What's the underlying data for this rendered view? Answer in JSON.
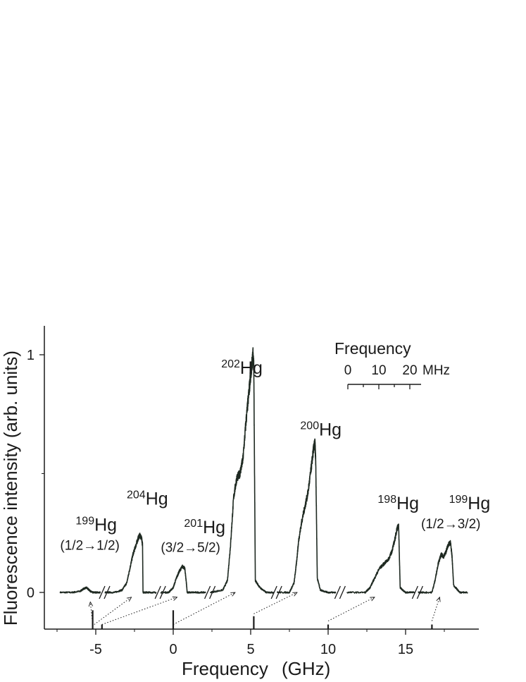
{
  "chart_data": {
    "type": "line",
    "title": "",
    "xlabel": "Frequency",
    "xunit": "(GHz)",
    "ylabel": "Fluorescence intensity (arb. units)",
    "xlim": [
      -8,
      20
    ],
    "ylim": [
      -0.15,
      1.12
    ],
    "xticks": [
      -5,
      0,
      5,
      10,
      15
    ],
    "yticks": [
      0,
      1
    ],
    "grid": false,
    "line_color": "#1f2a22",
    "axis_breaks_x": [
      -4.5,
      -0.9,
      2.3,
      6.6,
      10.7,
      15.7
    ],
    "series": [
      {
        "x": [
          -7.3,
          -6.5,
          -6.0,
          -5.8,
          -5.6,
          -5.5,
          -5.35,
          -5.2,
          -5.0,
          -4.7
        ],
        "y": [
          0.0,
          0.0,
          0.005,
          0.015,
          0.02,
          0.015,
          0.005,
          0.0,
          0.0,
          0.0
        ]
      },
      {
        "x": [
          -4.4,
          -3.8,
          -3.3,
          -3.0,
          -2.8,
          -2.6,
          -2.4,
          -2.25,
          -2.15,
          -2.05,
          -1.98,
          -1.95,
          -1.6,
          -1.1
        ],
        "y": [
          0.0,
          0.0,
          0.01,
          0.04,
          0.1,
          0.16,
          0.2,
          0.23,
          0.24,
          0.23,
          0.2,
          0.0,
          0.0,
          0.0
        ]
      },
      {
        "x": [
          -0.8,
          -0.3,
          0.0,
          0.2,
          0.4,
          0.6,
          0.75,
          0.85,
          0.9,
          1.0,
          1.5,
          2.1
        ],
        "y": [
          0.0,
          0.0,
          0.02,
          0.06,
          0.09,
          0.11,
          0.1,
          0.04,
          0.0,
          0.0,
          0.0,
          0.0
        ]
      },
      {
        "x": [
          2.4,
          3.2,
          3.5,
          3.7,
          3.9,
          4.1,
          4.3,
          4.5,
          4.7,
          4.9,
          5.0,
          5.1,
          5.15,
          5.2,
          5.3,
          5.6,
          6.0,
          6.5
        ],
        "y": [
          0.0,
          0.01,
          0.05,
          0.2,
          0.4,
          0.48,
          0.5,
          0.56,
          0.72,
          0.85,
          0.92,
          0.97,
          1.0,
          0.95,
          0.05,
          0.02,
          0.0,
          0.0
        ]
      },
      {
        "x": [
          6.7,
          7.5,
          7.8,
          7.95,
          8.1,
          8.3,
          8.5,
          8.7,
          8.9,
          9.05,
          9.15,
          9.2,
          9.3,
          9.5,
          10.0,
          10.5
        ],
        "y": [
          0.0,
          0.0,
          0.04,
          0.12,
          0.22,
          0.3,
          0.36,
          0.42,
          0.52,
          0.6,
          0.63,
          0.55,
          0.06,
          0.01,
          0.0,
          0.0
        ]
      },
      {
        "x": [
          11.2,
          12.4,
          12.7,
          13.0,
          13.3,
          13.6,
          13.9,
          14.1,
          14.3,
          14.45,
          14.55,
          14.65,
          15.0,
          15.6
        ],
        "y": [
          0.0,
          0.0,
          0.02,
          0.06,
          0.1,
          0.12,
          0.14,
          0.17,
          0.22,
          0.27,
          0.28,
          0.02,
          0.0,
          0.0
        ]
      },
      {
        "x": [
          15.8,
          16.7,
          16.9,
          17.1,
          17.3,
          17.45,
          17.6,
          17.75,
          17.9,
          18.0,
          18.1,
          18.5,
          19.0
        ],
        "y": [
          0.0,
          0.0,
          0.05,
          0.12,
          0.16,
          0.15,
          0.17,
          0.2,
          0.21,
          0.15,
          0.03,
          0.0,
          0.0
        ]
      }
    ],
    "reference_marks": [
      {
        "x": -5.2,
        "y_top": -0.075
      },
      {
        "x": -4.6,
        "y_top": -0.135
      },
      {
        "x": 0.0,
        "y_top": -0.075
      },
      {
        "x": 5.2,
        "y_top": -0.1
      },
      {
        "x": 10.0,
        "y_top": -0.135
      },
      {
        "x": 16.7,
        "y_top": -0.135
      }
    ],
    "peak_labels": [
      {
        "mass": "199",
        "element": "Hg",
        "transition": "(1/2→1/2)",
        "x": -6.3,
        "y": 0.26,
        "tx": -7.3,
        "ty": 0.18
      },
      {
        "mass": "204",
        "element": "Hg",
        "transition": "",
        "x": -3.0,
        "y": 0.37
      },
      {
        "mass": "201",
        "element": "Hg",
        "transition": "(3/2→5/2)",
        "x": 0.7,
        "y": 0.25,
        "tx": -0.8,
        "ty": 0.17
      },
      {
        "mass": "202",
        "element": "Hg",
        "transition": "",
        "x": 3.1,
        "y": 0.92
      },
      {
        "mass": "200",
        "element": "Hg",
        "transition": "",
        "x": 8.2,
        "y": 0.66
      },
      {
        "mass": "198",
        "element": "Hg",
        "transition": "",
        "x": 13.2,
        "y": 0.35
      },
      {
        "mass": "199",
        "element": "Hg",
        "transition": "(1/2→3/2)",
        "x": 17.8,
        "y": 0.35,
        "tx": 16.0,
        "ty": 0.27
      }
    ],
    "arrows": [
      {
        "from": [
          -5.2,
          -0.135
        ],
        "to": [
          -5.35,
          -0.04
        ]
      },
      {
        "from": [
          -5.1,
          -0.135
        ],
        "to": [
          -2.7,
          -0.02
        ]
      },
      {
        "from": [
          -4.6,
          -0.135
        ],
        "to": [
          0.25,
          -0.02
        ]
      },
      {
        "from": [
          0.0,
          -0.135
        ],
        "to": [
          4.0,
          -0.0
        ]
      },
      {
        "from": [
          5.2,
          -0.09
        ],
        "to": [
          8.0,
          0.0
        ]
      },
      {
        "from": [
          10.0,
          -0.12
        ],
        "to": [
          13.0,
          -0.02
        ]
      },
      {
        "from": [
          16.7,
          -0.12
        ],
        "to": [
          17.2,
          -0.02
        ]
      }
    ],
    "inset": {
      "title": "Frequency",
      "tick_labels": [
        "0",
        "10",
        "20"
      ],
      "unit": "MHz",
      "scale_max": 22
    }
  }
}
